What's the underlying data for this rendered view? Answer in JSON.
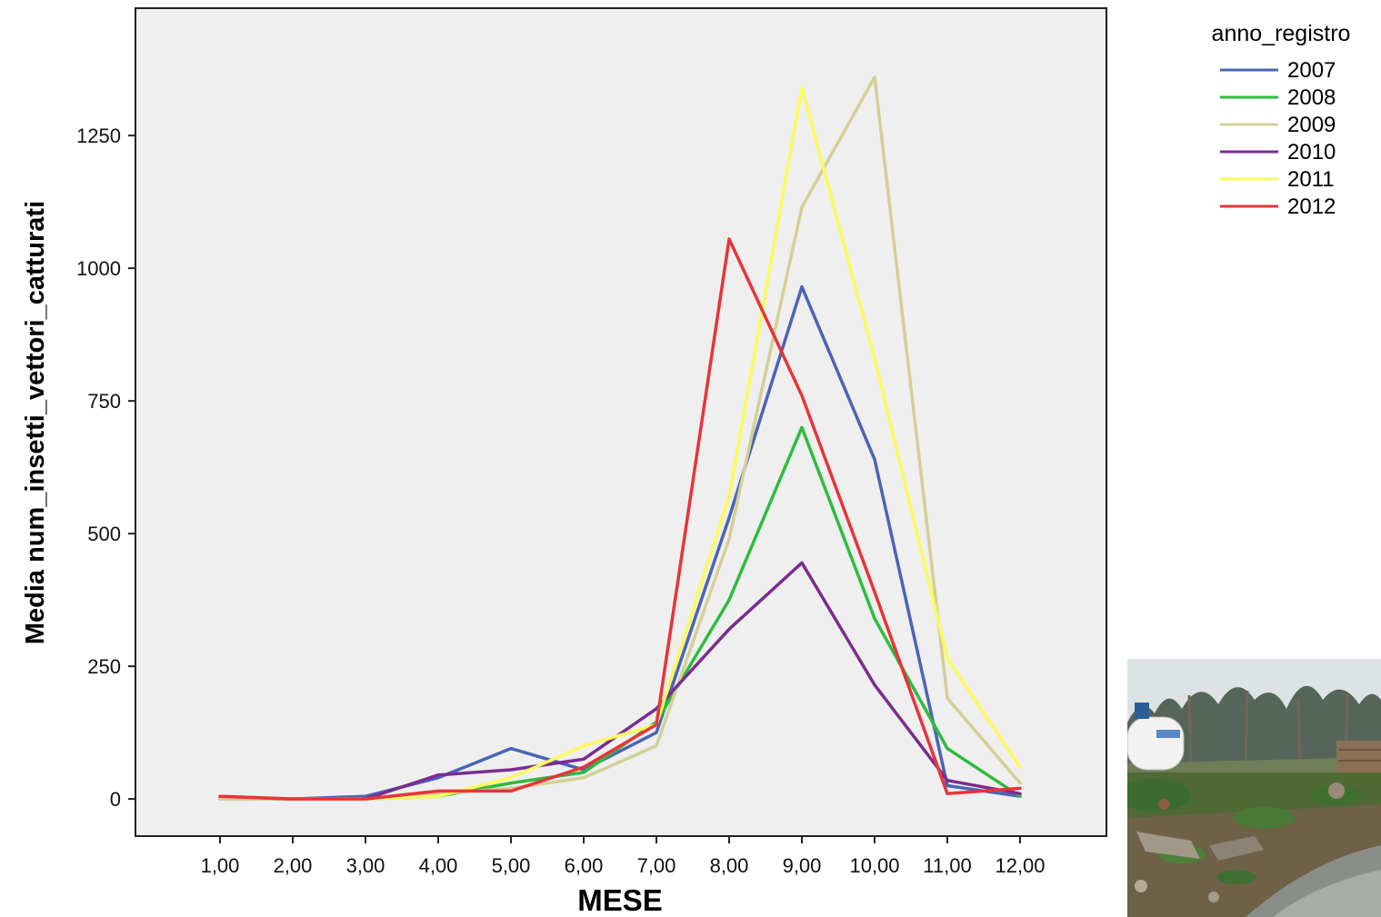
{
  "chart_data": {
    "type": "line",
    "title": "",
    "xlabel": "MESE",
    "ylabel": "Media num_insetti_vettori_catturati",
    "categories": [
      "1,00",
      "2,00",
      "3,00",
      "4,00",
      "5,00",
      "6,00",
      "7,00",
      "8,00",
      "9,00",
      "10,00",
      "11,00",
      "12,00"
    ],
    "x": [
      1,
      2,
      3,
      4,
      5,
      6,
      7,
      8,
      9,
      10,
      11,
      12
    ],
    "ylim": [
      -70,
      1490
    ],
    "yticks": [
      0,
      250,
      500,
      750,
      1000,
      1250
    ],
    "ytick_labels": [
      "0",
      "250",
      "500",
      "750",
      "1000",
      "1250"
    ],
    "grid": false,
    "background": "#efefef",
    "legend": {
      "title": "anno_registro",
      "position": "right"
    },
    "series": [
      {
        "name": "2007",
        "color": "#4a64b6",
        "values": [
          0,
          0,
          5,
          40,
          95,
          55,
          125,
          530,
          965,
          640,
          25,
          5
        ]
      },
      {
        "name": "2008",
        "color": "#2fbb3f",
        "values": [
          0,
          0,
          0,
          5,
          30,
          50,
          145,
          375,
          700,
          340,
          95,
          5
        ]
      },
      {
        "name": "2009",
        "color": "#d4cf98",
        "values": [
          0,
          0,
          0,
          10,
          20,
          40,
          100,
          490,
          1115,
          1360,
          190,
          30
        ]
      },
      {
        "name": "2010",
        "color": "#7a2c8f",
        "values": [
          5,
          0,
          0,
          45,
          55,
          75,
          170,
          320,
          445,
          215,
          35,
          10
        ]
      },
      {
        "name": "2011",
        "color": "#fbfb5c",
        "values": [
          5,
          0,
          0,
          5,
          40,
          100,
          140,
          570,
          1340,
          830,
          265,
          60
        ]
      },
      {
        "name": "2012",
        "color": "#e8343a",
        "values": [
          5,
          0,
          0,
          15,
          15,
          60,
          140,
          1055,
          760,
          390,
          10,
          20
        ]
      }
    ]
  }
}
